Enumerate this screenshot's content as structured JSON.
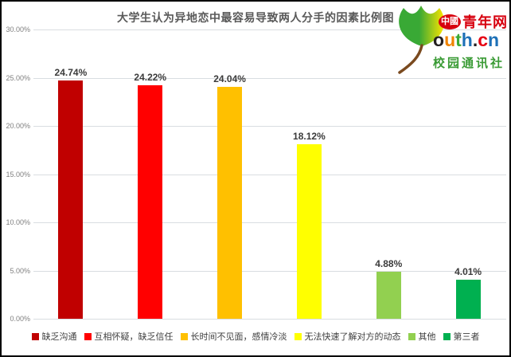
{
  "chart_data": {
    "type": "bar",
    "title": "大学生认为异地恋中最容易导致两人分手的因素比例图",
    "categories": [
      "缺乏沟通",
      "互相怀疑，缺乏信任",
      "长时间不见面，感情冷淡",
      "无法快速了解对方的动态",
      "其他",
      "第三者"
    ],
    "values": [
      24.74,
      24.22,
      24.04,
      18.12,
      4.88,
      4.01
    ],
    "value_labels": [
      "24.74%",
      "24.22%",
      "24.04%",
      "18.12%",
      "4.88%",
      "4.01%"
    ],
    "bar_colors": [
      "#c00000",
      "#ff0000",
      "#ffc000",
      "#ffff00",
      "#92d050",
      "#00b050"
    ],
    "xlabel": "",
    "ylabel": "",
    "ylim": [
      0,
      30
    ],
    "ytick_labels": [
      "30.00%",
      "25.00%",
      "20.00%",
      "15.00%",
      "10.00%",
      "5.00%",
      "0.00%"
    ],
    "grid": true,
    "legend_position": "bottom"
  },
  "logo": {
    "badge_text": "中國",
    "brand_text": "青年网",
    "domain_letters": [
      {
        "char": "o",
        "color": "#231f20"
      },
      {
        "char": "u",
        "color": "#f08300"
      },
      {
        "char": "t",
        "color": "#3aaa35"
      },
      {
        "char": "h",
        "color": "#1d70b7"
      },
      {
        "char": ".",
        "color": "#231f20"
      },
      {
        "char": "c",
        "color": "#e60012"
      },
      {
        "char": "n",
        "color": "#1d70b7"
      }
    ],
    "tagline": "校园通讯社",
    "brand_color": "#d7000f",
    "tagline_color": "#3a9b35",
    "leaf_green": "#39a935",
    "leaf_yellow": "#ffe600",
    "stem_color": "#7a4a1f"
  },
  "styles": {
    "title_color": "#595959",
    "axis_text_color": "#7f7f7f",
    "data_label_color": "#3b3b3b",
    "gridline_color": "#d9dde1",
    "legend_text_color": "#404040"
  }
}
